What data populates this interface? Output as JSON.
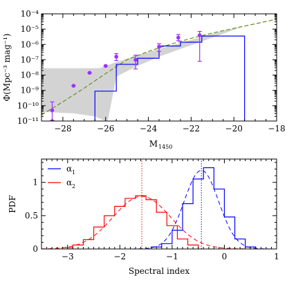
{
  "chart_data": [
    {
      "type": "line",
      "xlabel": "M",
      "xlabel_subscript": "1450",
      "ylabel": "Φ(Mpc⁻³ mag⁻¹)",
      "yscale": "log",
      "xlim": [
        -29,
        -18
      ],
      "ylim_exp": [
        -11,
        -4
      ],
      "x_ticks": [
        -28,
        -26,
        -24,
        -22,
        -20,
        -18
      ],
      "x_tick_labels": [
        "−28",
        "−26",
        "−24",
        "−22",
        "−20",
        "−18"
      ],
      "y_ticks_exp": [
        -11,
        -10,
        -9,
        -8,
        -7,
        -6,
        -5,
        -4
      ],
      "y_tick_labels": [
        "10⁻¹¹",
        "10⁻¹⁰",
        "10⁻⁹",
        "10⁻⁸",
        "10⁻⁷",
        "10⁻⁶",
        "10⁻⁵",
        "10⁻⁴"
      ],
      "grid": false,
      "shaded_region": {
        "color": "#d3d3d3",
        "upper": [
          [
            -29,
            -7.55
          ],
          [
            -26.3,
            -7.55
          ],
          [
            -25.4,
            -7.1
          ],
          [
            -24.5,
            -6.7
          ],
          [
            -23.5,
            -6.3
          ],
          [
            -22.5,
            -5.9
          ],
          [
            -21.5,
            -5.5
          ],
          [
            -20.5,
            -5.1
          ],
          [
            -19.6,
            -4.85
          ]
        ],
        "lower": [
          [
            -19.6,
            -4.85
          ],
          [
            -20.5,
            -5.3
          ],
          [
            -21.5,
            -5.8
          ],
          [
            -22.5,
            -6.3
          ],
          [
            -23.5,
            -6.8
          ],
          [
            -24.5,
            -7.4
          ],
          [
            -25.5,
            -8.1
          ],
          [
            -25.9,
            -11
          ],
          [
            -26.0,
            -11
          ],
          [
            -26.5,
            -10.7
          ],
          [
            -27.5,
            -10.5
          ],
          [
            -29,
            -10.4
          ]
        ]
      },
      "fit_curve": {
        "color": "#6b8e23",
        "x": [
          -29,
          -28,
          -27,
          -26,
          -25,
          -24,
          -23,
          -22,
          -21,
          -20,
          -19,
          -18
        ],
        "log_y": [
          -10.6,
          -9.75,
          -8.85,
          -7.9,
          -7.0,
          -6.45,
          -6.0,
          -5.6,
          -5.25,
          -4.95,
          -4.65,
          -4.35
        ]
      },
      "step_histogram": {
        "color": "#0000ff",
        "edges": [
          -26.5,
          -25.5,
          -24.5,
          -23.5,
          -22.5,
          -21.5,
          -19.5
        ],
        "log_values": [
          -9.05,
          -7.3,
          -6.9,
          -6.1,
          -5.85,
          -5.45
        ],
        "drops_to_bottom_at": -19.5
      },
      "points": {
        "color": "#9b30ff",
        "x": [
          -28.5,
          -27.5,
          -26.75,
          -26.0,
          -25.5,
          -24.6,
          -23.5,
          -22.6,
          -21.6
        ],
        "log_y": [
          -10.3,
          -8.7,
          -7.85,
          -7.4,
          -6.8,
          -7.0,
          -6.15,
          -5.55,
          -5.4
        ],
        "log_err_lo": [
          -10.95,
          -8.7,
          -7.85,
          -7.4,
          -7.05,
          -7.6,
          -6.45,
          -5.75,
          -7.1
        ],
        "log_err_hi": [
          -9.75,
          -8.7,
          -7.85,
          -7.4,
          -6.6,
          -6.7,
          -5.95,
          -5.35,
          -5.15
        ]
      }
    },
    {
      "type": "line",
      "xlabel": "Spectral index",
      "ylabel": "PDF",
      "xlim": [
        -3.5,
        1.0
      ],
      "ylim": [
        0,
        1.35
      ],
      "x_ticks": [
        -3,
        -2,
        -1,
        0,
        1
      ],
      "x_tick_labels": [
        "−3",
        "−2",
        "−1",
        "0",
        "1"
      ],
      "y_ticks": [
        0,
        0.5,
        1
      ],
      "y_tick_labels": [
        "0",
        "0.5",
        "1"
      ],
      "grid": false,
      "legend_position": "top-left",
      "series": [
        {
          "name": "α",
          "name_subscript": "1",
          "color": "#0000ff",
          "edges": [
            -1.4,
            -1.2,
            -1.0,
            -0.8,
            -0.6,
            -0.4,
            -0.2,
            0.0,
            0.2,
            0.4,
            0.6
          ],
          "values": [
            0.03,
            0.08,
            0.28,
            0.68,
            1.05,
            1.22,
            0.9,
            0.48,
            0.15,
            0.03
          ],
          "gauss_mean": -0.44,
          "gauss_sigma": 0.33,
          "gauss_peak": 1.18,
          "mean_marker": -0.44
        },
        {
          "name": "α",
          "name_subscript": "2",
          "color": "#ff0000",
          "edges": [
            -3.1,
            -2.9,
            -2.7,
            -2.5,
            -2.3,
            -2.1,
            -1.9,
            -1.7,
            -1.5,
            -1.3,
            -1.1,
            -0.9,
            -0.7,
            -0.5
          ],
          "values": [
            0.02,
            0.06,
            0.14,
            0.33,
            0.5,
            0.64,
            0.76,
            0.8,
            0.74,
            0.55,
            0.35,
            0.15,
            0.06
          ],
          "gauss_mean": -1.58,
          "gauss_sigma": 0.55,
          "gauss_peak": 0.79,
          "mean_marker": -1.58
        }
      ]
    }
  ]
}
